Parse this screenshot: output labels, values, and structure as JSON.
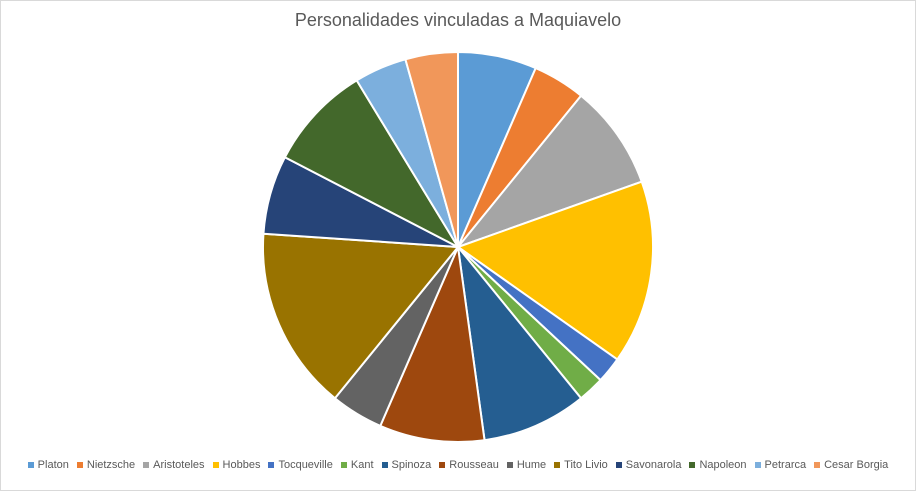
{
  "chart_data": {
    "type": "pie",
    "title": "Personalidades vinculadas a Maquiavelo",
    "legend_position": "bottom",
    "categories": [
      "Platon",
      "Nietzsche",
      "Aristoteles",
      "Hobbes",
      "Tocqueville",
      "Kant",
      "Spinoza",
      "Rousseau",
      "Hume",
      "Tito Livio",
      "Savonarola",
      "Napoleon",
      "Petrarca",
      "Cesar Borgia"
    ],
    "values": [
      3,
      2,
      4,
      7,
      1,
      1,
      4,
      4,
      2,
      7,
      3,
      4,
      2,
      2
    ],
    "colors": [
      "#5b9bd5",
      "#ed7d31",
      "#a5a5a5",
      "#ffc000",
      "#4472c4",
      "#70ad47",
      "#255e91",
      "#9e480e",
      "#636363",
      "#997300",
      "#264478",
      "#43682b",
      "#7cafdd",
      "#f1975a"
    ]
  }
}
